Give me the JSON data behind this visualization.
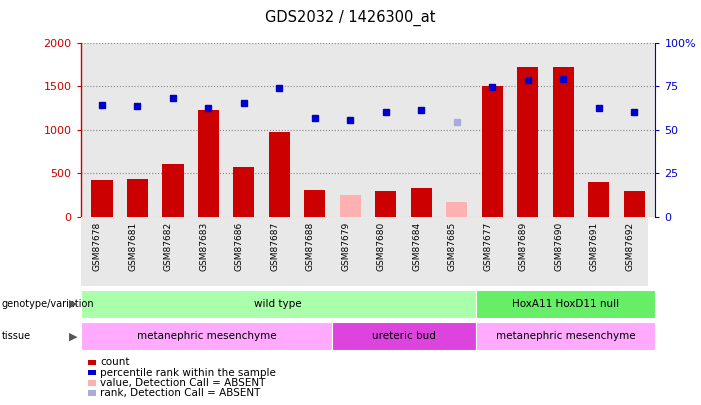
{
  "title": "GDS2032 / 1426300_at",
  "samples": [
    "GSM87678",
    "GSM87681",
    "GSM87682",
    "GSM87683",
    "GSM87686",
    "GSM87687",
    "GSM87688",
    "GSM87679",
    "GSM87680",
    "GSM87684",
    "GSM87685",
    "GSM87677",
    "GSM87689",
    "GSM87690",
    "GSM87691",
    "GSM87692"
  ],
  "counts": [
    420,
    430,
    600,
    1230,
    570,
    970,
    310,
    250,
    290,
    330,
    170,
    1500,
    1720,
    1720,
    400,
    290
  ],
  "count_absent": [
    false,
    false,
    false,
    false,
    false,
    false,
    false,
    true,
    false,
    false,
    true,
    false,
    false,
    false,
    false,
    false
  ],
  "ranks": [
    64,
    63.5,
    68,
    62.5,
    65.5,
    74,
    56.5,
    55.5,
    60,
    61,
    54.5,
    74.5,
    78.5,
    79,
    62.5,
    60
  ],
  "rank_absent": [
    false,
    false,
    false,
    false,
    false,
    false,
    false,
    false,
    false,
    false,
    true,
    false,
    false,
    false,
    false,
    false
  ],
  "ylim_left": [
    0,
    2000
  ],
  "ylim_right": [
    0,
    100
  ],
  "yticks_left": [
    0,
    500,
    1000,
    1500,
    2000
  ],
  "yticks_right": [
    0,
    25,
    50,
    75,
    100
  ],
  "ytick_labels_left": [
    "0",
    "500",
    "1000",
    "1500",
    "2000"
  ],
  "ytick_labels_right": [
    "0",
    "25",
    "50",
    "75",
    "100%"
  ],
  "bar_color_normal": "#cc0000",
  "bar_color_absent": "#ffb0b0",
  "rank_color_normal": "#0000cc",
  "rank_color_absent": "#aaaadd",
  "axis_bg": "#e8e8e8",
  "genotype_groups": [
    {
      "label": "wild type",
      "start": 0,
      "end": 11,
      "color": "#aaffaa"
    },
    {
      "label": "HoxA11 HoxD11 null",
      "start": 11,
      "end": 16,
      "color": "#66ee66"
    }
  ],
  "tissue_groups": [
    {
      "label": "metanephric mesenchyme",
      "start": 0,
      "end": 7,
      "color": "#ffaaff"
    },
    {
      "label": "ureteric bud",
      "start": 7,
      "end": 11,
      "color": "#dd44dd"
    },
    {
      "label": "metanephric mesenchyme",
      "start": 11,
      "end": 16,
      "color": "#ffaaff"
    }
  ],
  "legend_items": [
    {
      "color": "#cc0000",
      "label": "count"
    },
    {
      "color": "#0000cc",
      "label": "percentile rank within the sample"
    },
    {
      "color": "#ffb0b0",
      "label": "value, Detection Call = ABSENT"
    },
    {
      "color": "#aaaadd",
      "label": "rank, Detection Call = ABSENT"
    }
  ]
}
